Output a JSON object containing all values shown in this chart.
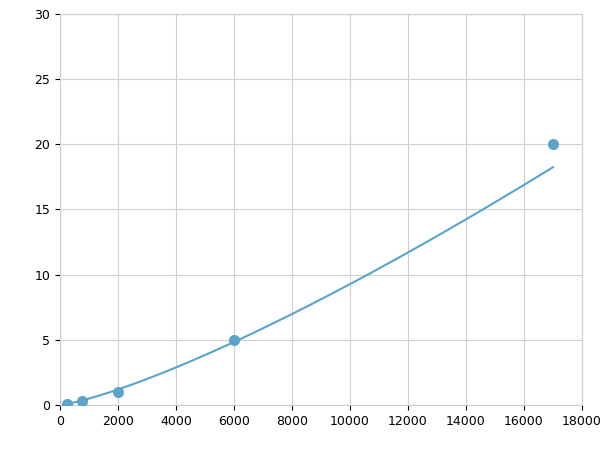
{
  "x": [
    250,
    750,
    2000,
    6000,
    17000
  ],
  "y": [
    0.1,
    0.3,
    1.0,
    5.0,
    20.0
  ],
  "line_color": "#5ba3c9",
  "marker_color": "#5ba3c9",
  "marker_size": 7,
  "linewidth": 1.5,
  "xlim": [
    0,
    18000
  ],
  "ylim": [
    0,
    30
  ],
  "xticks": [
    0,
    2000,
    4000,
    6000,
    8000,
    10000,
    12000,
    14000,
    16000,
    18000
  ],
  "yticks": [
    0,
    5,
    10,
    15,
    20,
    25,
    30
  ],
  "grid_color": "#d0d0d0",
  "background_color": "#ffffff",
  "figure_background": "#ffffff",
  "tick_fontsize": 9
}
